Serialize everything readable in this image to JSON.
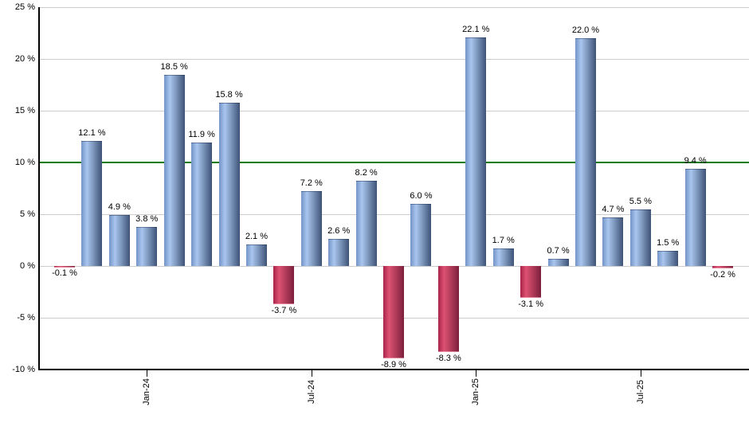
{
  "chart_data": {
    "type": "bar",
    "title": "",
    "unit": "%",
    "ylim": [
      -10,
      25
    ],
    "grid": true,
    "legend": "none",
    "values": [
      -0.1,
      12.1,
      4.9,
      3.8,
      18.5,
      11.9,
      15.8,
      2.1,
      -3.7,
      7.2,
      2.6,
      8.2,
      -8.9,
      6.0,
      -8.3,
      22.1,
      1.7,
      -3.1,
      0.7,
      22.0,
      4.7,
      5.5,
      1.5,
      9.4,
      -0.2
    ],
    "bar_labels": [
      "-0.1 %",
      "12.1 %",
      "4.9 %",
      "3.8 %",
      "18.5 %",
      "11.9 %",
      "15.8 %",
      "2.1 %",
      "-3.7 %",
      "7.2 %",
      "2.6 %",
      "8.2 %",
      "-8.9 %",
      "6.0 %",
      "-8.3 %",
      "22.1 %",
      "1.7 %",
      "-3.1 %",
      "0.7 %",
      "22.0 %",
      "4.7 %",
      "5.5 %",
      "1.5 %",
      "9.4 %",
      "-0.2 %"
    ],
    "y_ticks": [
      {
        "value": 25,
        "label": "25 %"
      },
      {
        "value": 20,
        "label": "20 %"
      },
      {
        "value": 15,
        "label": "15 %"
      },
      {
        "value": 10,
        "label": "10 %"
      },
      {
        "value": 5,
        "label": "5 %"
      },
      {
        "value": 0,
        "label": "0 %"
      },
      {
        "value": -5,
        "label": "-5 %"
      },
      {
        "value": -10,
        "label": "-10 %"
      }
    ],
    "x_ticks": [
      {
        "bar_index": 3,
        "label": "Jan-24"
      },
      {
        "bar_index": 9,
        "label": "Jul-24"
      },
      {
        "bar_index": 15,
        "label": "Jan-25"
      },
      {
        "bar_index": 21,
        "label": "Jul-25"
      }
    ],
    "threshold_line": {
      "value": 10,
      "color": "#007a00"
    },
    "colors": {
      "positive_bar": {
        "left": "#7394c8",
        "light": "#a9c6ee",
        "right": "#3f5377"
      },
      "negative_bar": {
        "left": "#a82349",
        "light": "#dd5272",
        "right": "#7b1f3c"
      },
      "gridline": "#cccccc",
      "axis": "#000000",
      "text": "#000000",
      "background": "#ffffff"
    }
  }
}
